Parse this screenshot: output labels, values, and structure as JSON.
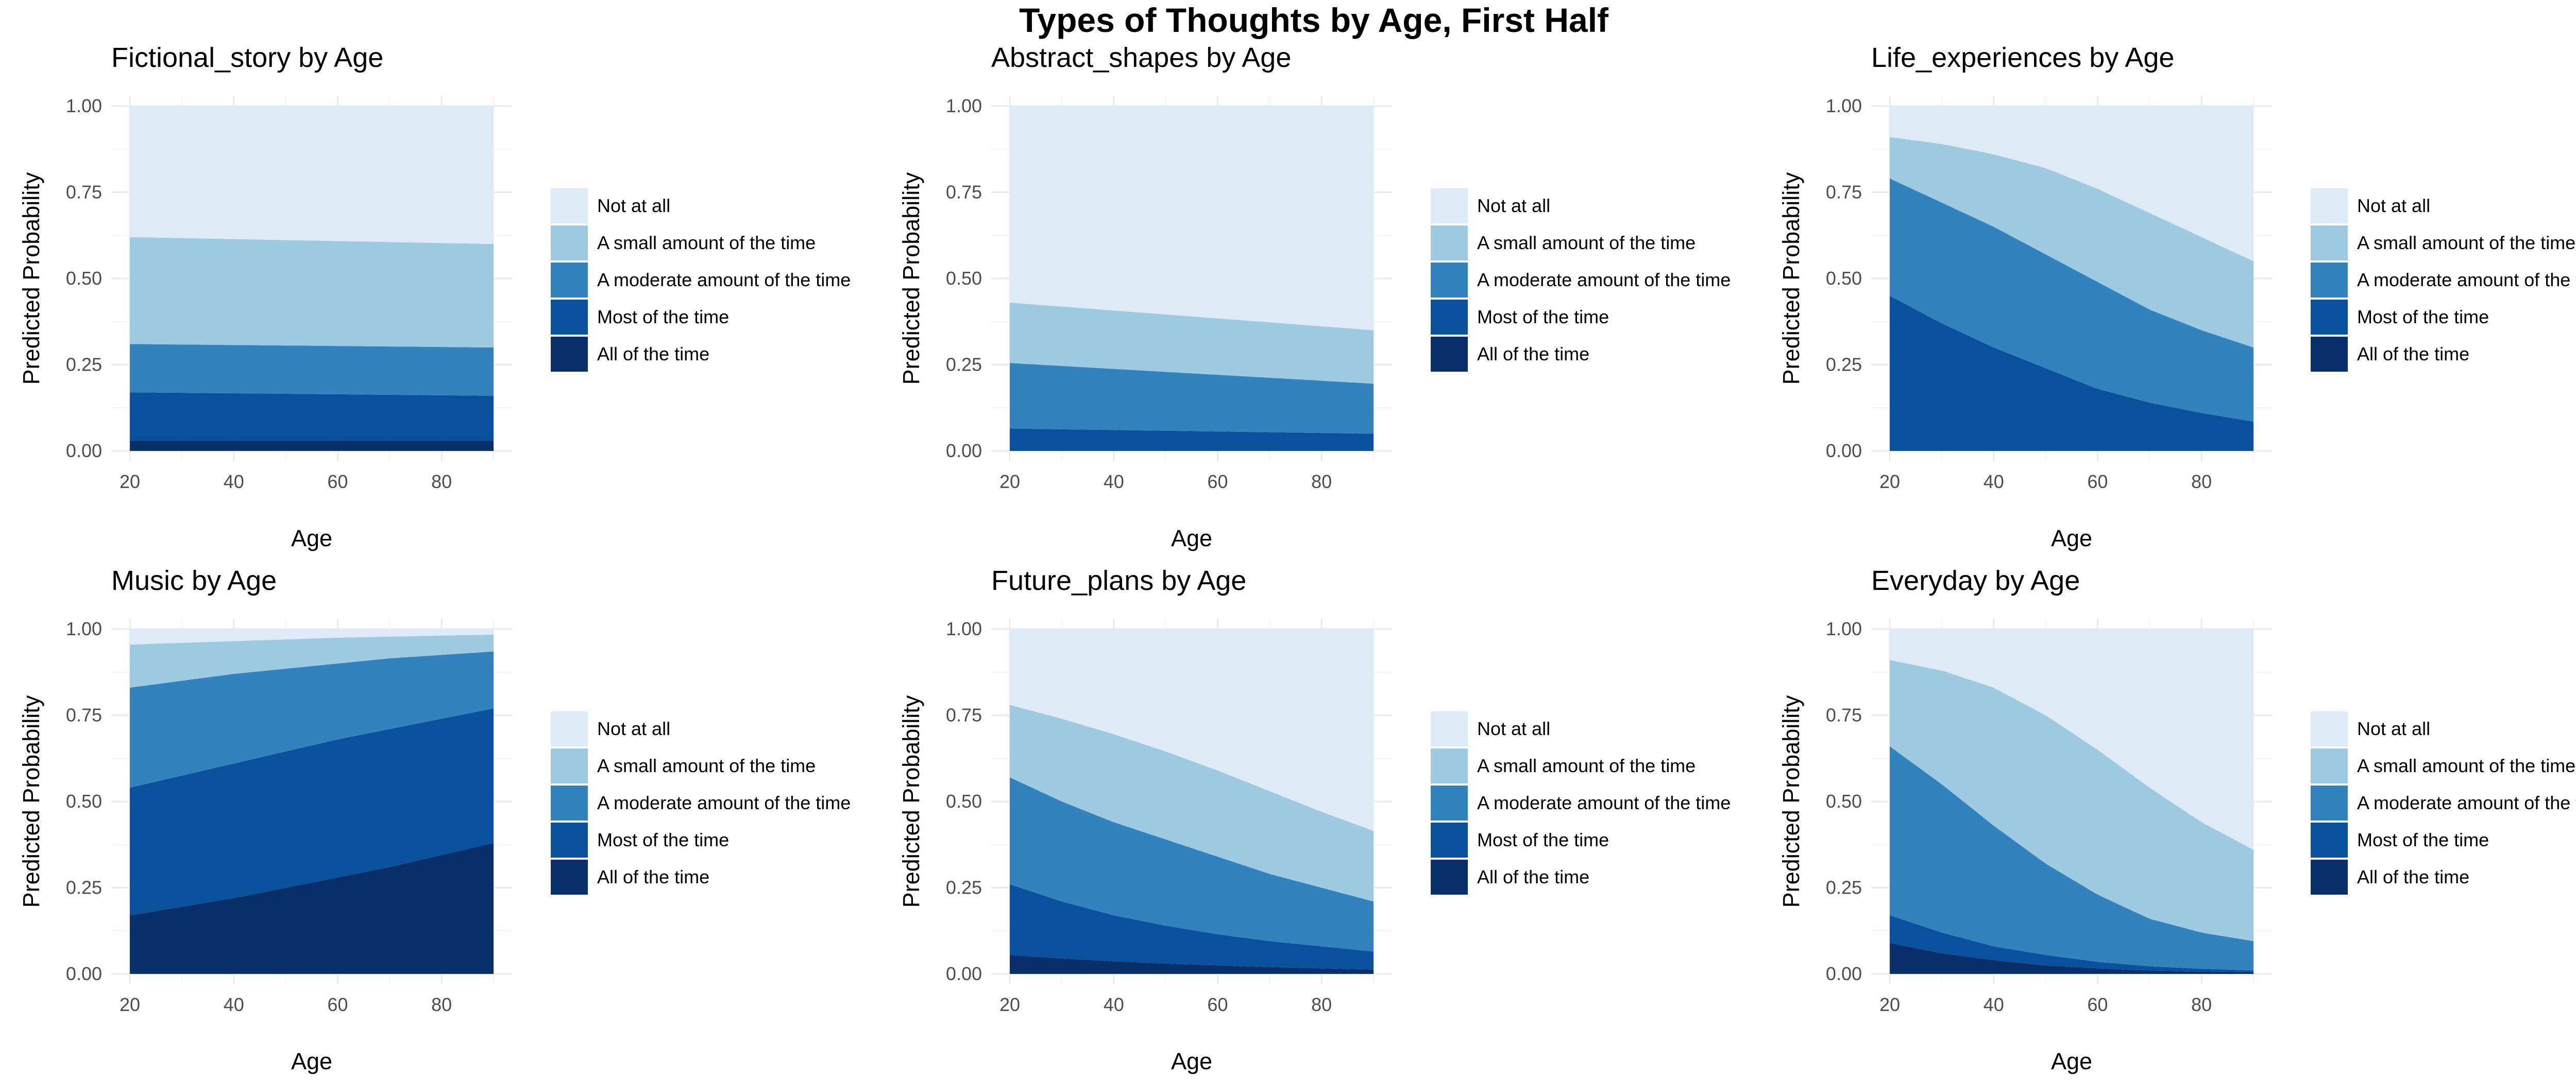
{
  "title": "Types of Thoughts by Age, First Half",
  "legend": {
    "categories": [
      "Not at all",
      "A small amount of the time",
      "A moderate amount of the time",
      "Most of the time",
      "All of the time"
    ],
    "colors": [
      "#deebf7",
      "#9ecae1",
      "#3182bd",
      "#08519c",
      "#08306b"
    ]
  },
  "chart_data": [
    {
      "type": "area",
      "stacked": true,
      "title": "Fictional_story by Age",
      "xlabel": "Age",
      "ylabel": "Predicted Probability",
      "xlim": [
        20,
        90
      ],
      "ylim": [
        0,
        1
      ],
      "xticks": [
        20,
        40,
        60,
        80
      ],
      "yticks": [
        "0.00",
        "0.25",
        "0.50",
        "0.75",
        "1.00"
      ],
      "x": [
        20,
        90
      ],
      "cumulative_top_of_band": {
        "All of the time": [
          0.03,
          0.03
        ],
        "Most of the time": [
          0.17,
          0.16
        ],
        "A moderate amount of the time": [
          0.31,
          0.3
        ],
        "A small amount of the time": [
          0.62,
          0.6
        ],
        "Not at all": [
          1.0,
          1.0
        ]
      }
    },
    {
      "type": "area",
      "stacked": true,
      "title": "Abstract_shapes by Age",
      "xlabel": "Age",
      "ylabel": "Predicted Probability",
      "xlim": [
        20,
        90
      ],
      "ylim": [
        0,
        1
      ],
      "xticks": [
        20,
        40,
        60,
        80
      ],
      "yticks": [
        "0.00",
        "0.25",
        "0.50",
        "0.75",
        "1.00"
      ],
      "x": [
        20,
        90
      ],
      "cumulative_top_of_band": {
        "All of the time": [
          0.0,
          0.0
        ],
        "Most of the time": [
          0.065,
          0.05
        ],
        "A moderate amount of the time": [
          0.255,
          0.195
        ],
        "A small amount of the time": [
          0.43,
          0.35
        ],
        "Not at all": [
          1.0,
          1.0
        ]
      }
    },
    {
      "type": "area",
      "stacked": true,
      "title": "Life_experiences by Age",
      "xlabel": "Age",
      "ylabel": "Predicted Probability",
      "xlim": [
        20,
        90
      ],
      "ylim": [
        0,
        1
      ],
      "xticks": [
        20,
        40,
        60,
        80
      ],
      "yticks": [
        "0.00",
        "0.25",
        "0.50",
        "0.75",
        "1.00"
      ],
      "x": [
        20,
        30,
        40,
        50,
        60,
        70,
        80,
        90
      ],
      "cumulative_top_of_band": {
        "All of the time": [
          0.0,
          0.0,
          0.0,
          0.0,
          0.0,
          0.0,
          0.0,
          0.0
        ],
        "Most of the time": [
          0.45,
          0.37,
          0.3,
          0.24,
          0.18,
          0.14,
          0.11,
          0.085
        ],
        "A moderate amount of the time": [
          0.79,
          0.72,
          0.65,
          0.57,
          0.49,
          0.41,
          0.35,
          0.3
        ],
        "A small amount of the time": [
          0.91,
          0.89,
          0.86,
          0.82,
          0.76,
          0.69,
          0.62,
          0.55
        ],
        "Not at all": [
          1,
          1,
          1,
          1,
          1,
          1,
          1,
          1
        ]
      }
    },
    {
      "type": "area",
      "stacked": true,
      "title": "Music by Age",
      "xlabel": "Age",
      "ylabel": "Predicted Probability",
      "xlim": [
        20,
        90
      ],
      "ylim": [
        0,
        1
      ],
      "xticks": [
        20,
        40,
        60,
        80
      ],
      "yticks": [
        "0.00",
        "0.25",
        "0.50",
        "0.75",
        "1.00"
      ],
      "x": [
        20,
        30,
        40,
        50,
        60,
        70,
        80,
        90
      ],
      "cumulative_top_of_band": {
        "All of the time": [
          0.17,
          0.195,
          0.22,
          0.25,
          0.28,
          0.31,
          0.345,
          0.38
        ],
        "Most of the time": [
          0.54,
          0.575,
          0.61,
          0.645,
          0.68,
          0.71,
          0.74,
          0.77
        ],
        "A moderate amount of the time": [
          0.83,
          0.85,
          0.87,
          0.885,
          0.9,
          0.915,
          0.925,
          0.935
        ],
        "A small amount of the time": [
          0.955,
          0.96,
          0.965,
          0.97,
          0.975,
          0.978,
          0.981,
          0.984
        ],
        "Not at all": [
          1,
          1,
          1,
          1,
          1,
          1,
          1,
          1
        ]
      }
    },
    {
      "type": "area",
      "stacked": true,
      "title": "Future_plans by Age",
      "xlabel": "Age",
      "ylabel": "Predicted Probability",
      "xlim": [
        20,
        90
      ],
      "ylim": [
        0,
        1
      ],
      "xticks": [
        20,
        40,
        60,
        80
      ],
      "yticks": [
        "0.00",
        "0.25",
        "0.50",
        "0.75",
        "1.00"
      ],
      "x": [
        20,
        30,
        40,
        50,
        60,
        70,
        80,
        90
      ],
      "cumulative_top_of_band": {
        "All of the time": [
          0.055,
          0.045,
          0.037,
          0.03,
          0.025,
          0.02,
          0.016,
          0.013
        ],
        "Most of the time": [
          0.26,
          0.21,
          0.17,
          0.14,
          0.115,
          0.095,
          0.08,
          0.065
        ],
        "A moderate amount of the time": [
          0.57,
          0.5,
          0.44,
          0.39,
          0.34,
          0.29,
          0.25,
          0.21
        ],
        "A small amount of the time": [
          0.78,
          0.74,
          0.695,
          0.645,
          0.59,
          0.53,
          0.47,
          0.415
        ],
        "Not at all": [
          1,
          1,
          1,
          1,
          1,
          1,
          1,
          1
        ]
      }
    },
    {
      "type": "area",
      "stacked": true,
      "title": "Everyday by Age",
      "xlabel": "Age",
      "ylabel": "Predicted Probability",
      "xlim": [
        20,
        90
      ],
      "ylim": [
        0,
        1
      ],
      "xticks": [
        20,
        40,
        60,
        80
      ],
      "yticks": [
        "0.00",
        "0.25",
        "0.50",
        "0.75",
        "1.00"
      ],
      "x": [
        20,
        30,
        40,
        50,
        60,
        70,
        80,
        90
      ],
      "cumulative_top_of_band": {
        "All of the time": [
          0.09,
          0.06,
          0.04,
          0.025,
          0.016,
          0.01,
          0.007,
          0.005
        ],
        "Most of the time": [
          0.17,
          0.12,
          0.08,
          0.055,
          0.035,
          0.022,
          0.015,
          0.01
        ],
        "A moderate amount of the time": [
          0.66,
          0.55,
          0.43,
          0.32,
          0.23,
          0.16,
          0.12,
          0.095
        ],
        "A small amount of the time": [
          0.91,
          0.88,
          0.83,
          0.75,
          0.65,
          0.54,
          0.44,
          0.36
        ],
        "Not at all": [
          1,
          1,
          1,
          1,
          1,
          1,
          1,
          1
        ]
      }
    }
  ]
}
